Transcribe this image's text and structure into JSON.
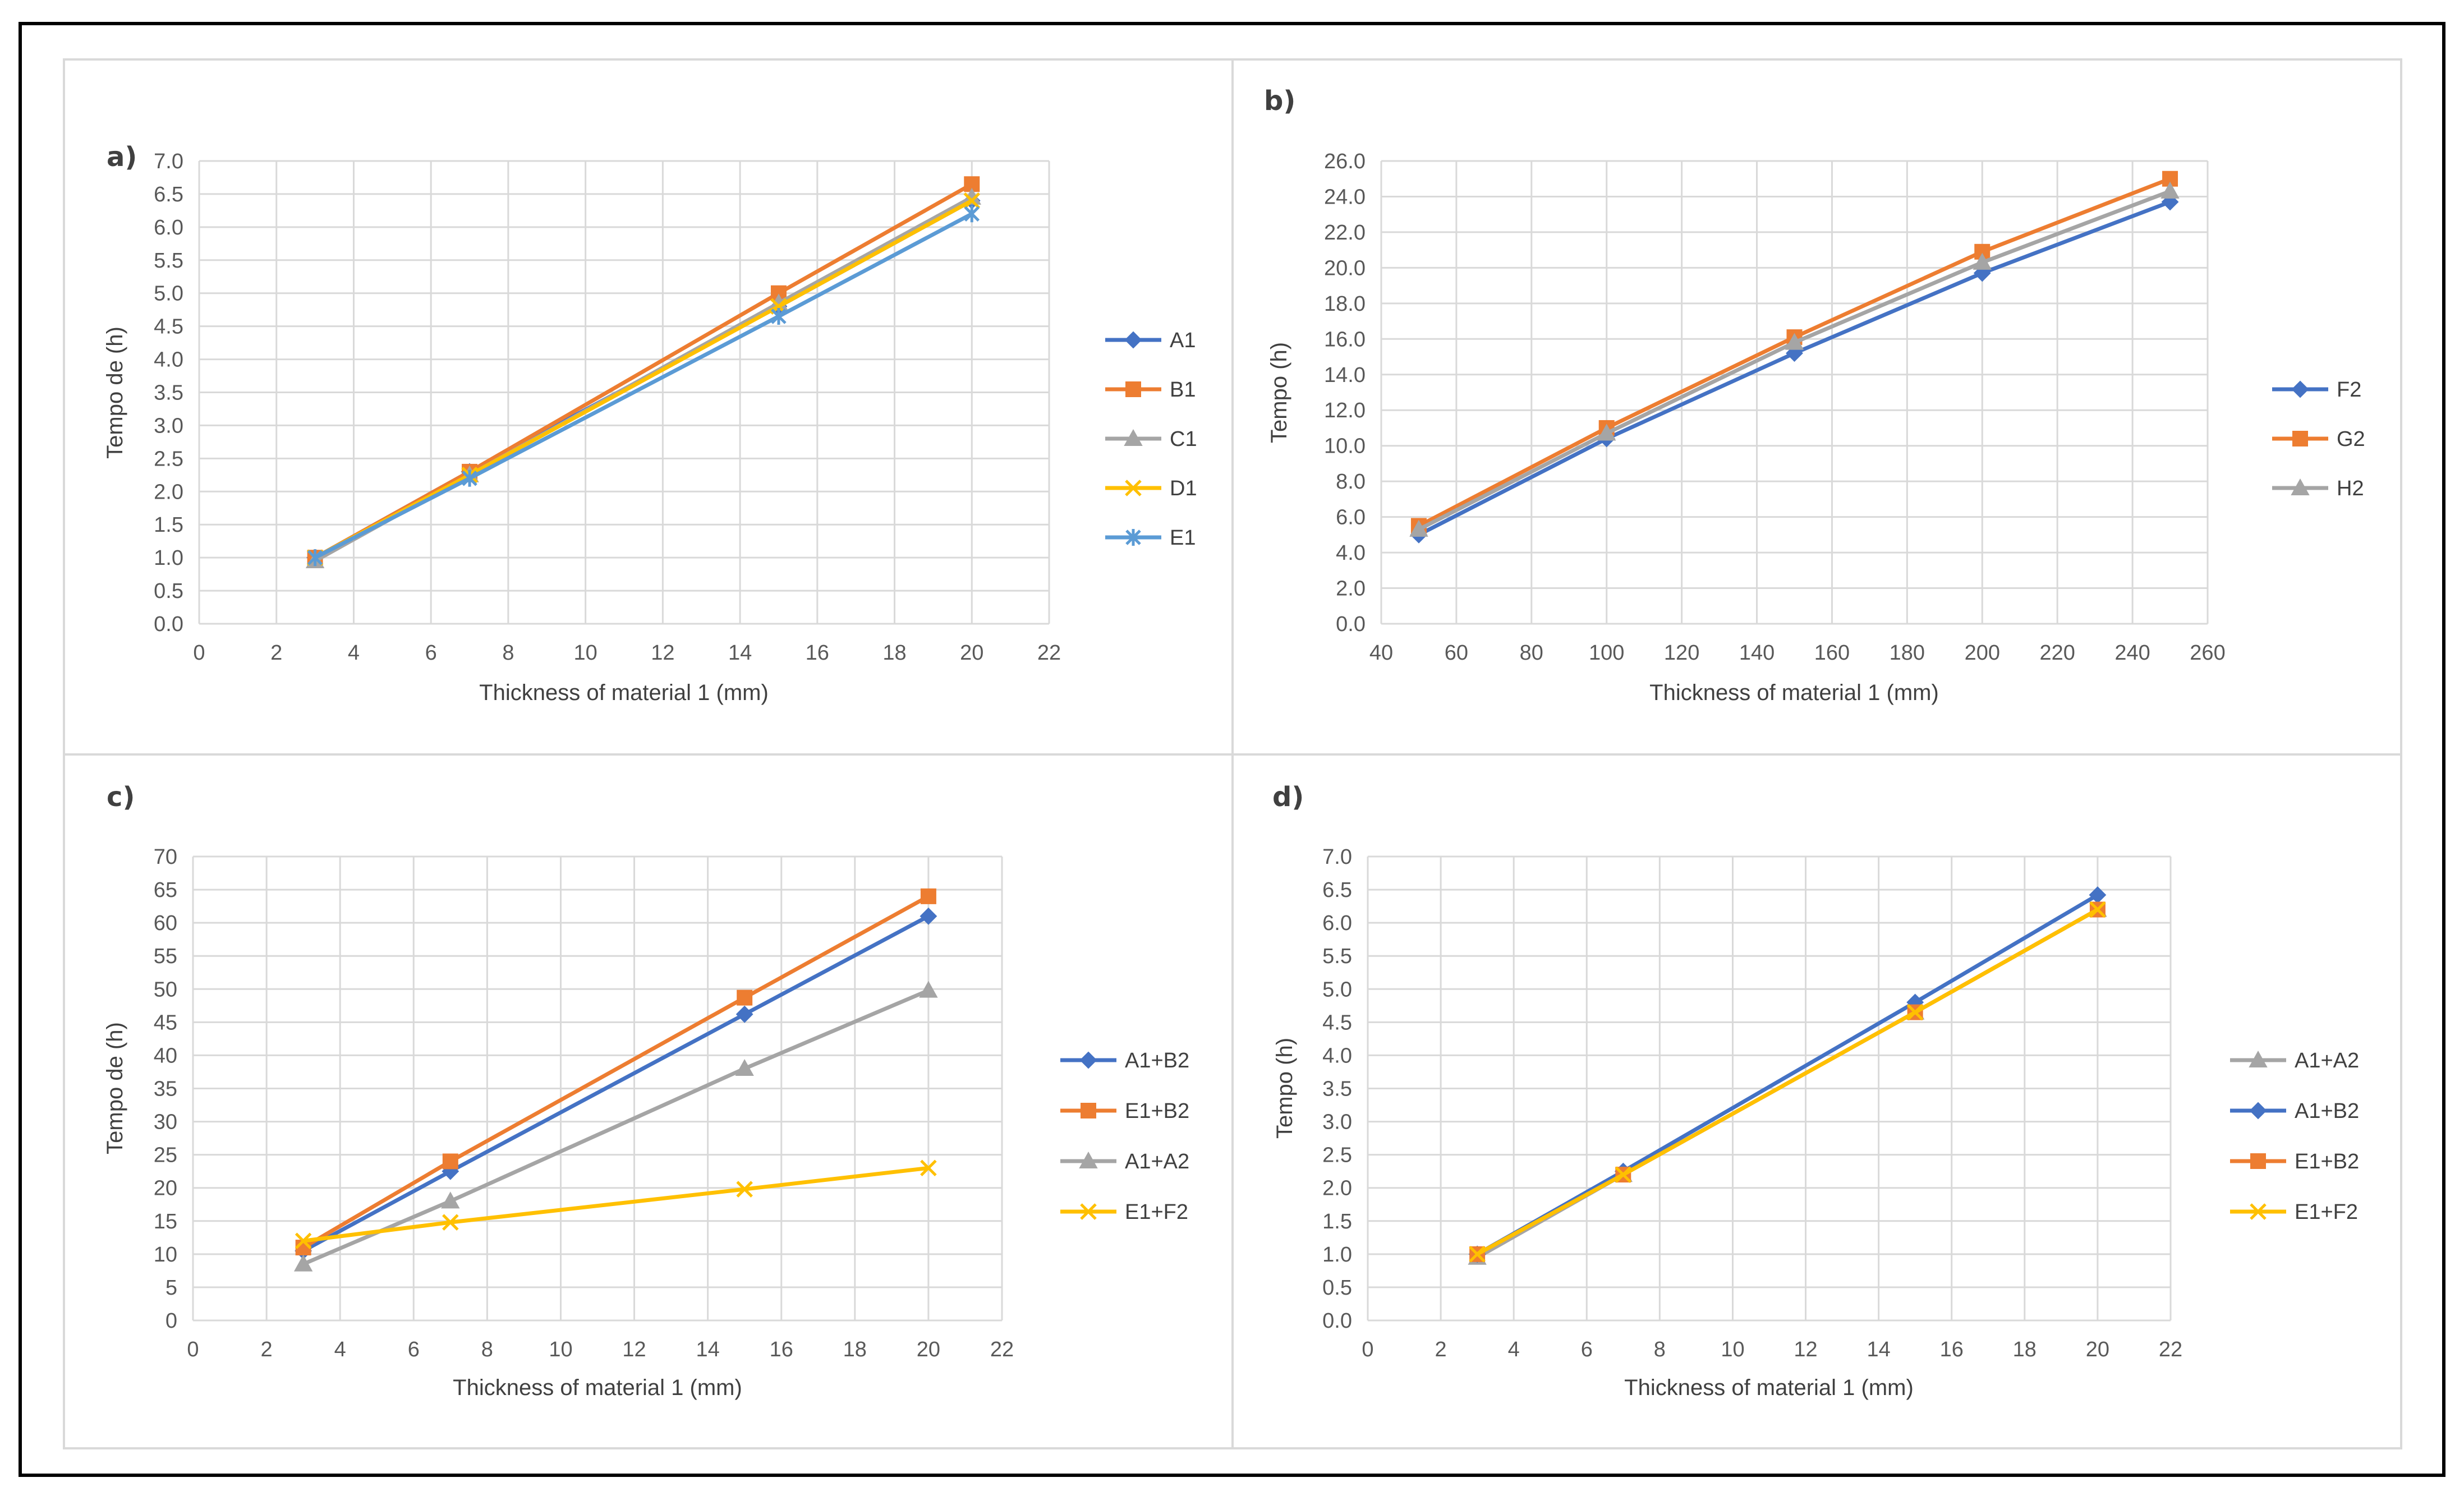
{
  "colors": {
    "blue": "#4472c4",
    "orange": "#ed7d31",
    "gray": "#a5a5a5",
    "yellow": "#ffc000",
    "lightblue": "#5b9bd5",
    "grid": "#d9d9d9",
    "frame": "#000000",
    "panel_border": "#d9d9d9"
  },
  "chart_data": [
    {
      "id": "a",
      "type": "line",
      "title": "a)",
      "xlabel": "Thickness of material 1 (mm)",
      "ylabel": "Tempo de (h)",
      "xlim": [
        0,
        22
      ],
      "xstep": 2,
      "ylim": [
        0,
        7
      ],
      "ystep": 0.5,
      "ydecimals": 1,
      "grid": true,
      "legend": "right",
      "series": [
        {
          "name": "A1",
          "marker": "diamond",
          "color": "#4472c4",
          "x": [
            3,
            7,
            15,
            20
          ],
          "y": [
            1.0,
            2.3,
            4.8,
            6.4
          ]
        },
        {
          "name": "B1",
          "marker": "square",
          "color": "#ed7d31",
          "x": [
            3,
            7,
            15,
            20
          ],
          "y": [
            1.0,
            2.3,
            5.0,
            6.65
          ]
        },
        {
          "name": "C1",
          "marker": "triangle",
          "color": "#a5a5a5",
          "x": [
            3,
            7,
            15,
            20
          ],
          "y": [
            0.95,
            2.25,
            4.85,
            6.45
          ]
        },
        {
          "name": "D1",
          "marker": "x",
          "color": "#ffc000",
          "x": [
            3,
            7,
            15,
            20
          ],
          "y": [
            1.0,
            2.25,
            4.8,
            6.4
          ]
        },
        {
          "name": "E1",
          "marker": "asterisk",
          "color": "#5b9bd5",
          "x": [
            3,
            7,
            15,
            20
          ],
          "y": [
            1.0,
            2.2,
            4.65,
            6.2
          ]
        }
      ]
    },
    {
      "id": "b",
      "type": "line",
      "title": "b)",
      "xlabel": "Thickness of material 1 (mm)",
      "ylabel": "Tempo (h)",
      "xlim": [
        40,
        260
      ],
      "xstep": 20,
      "ylim": [
        0,
        26
      ],
      "ystep": 2,
      "ydecimals": 1,
      "grid": true,
      "legend": "right",
      "series": [
        {
          "name": "F2",
          "marker": "diamond",
          "color": "#4472c4",
          "x": [
            50,
            100,
            150,
            200,
            250
          ],
          "y": [
            5.0,
            10.4,
            15.2,
            19.7,
            23.7
          ]
        },
        {
          "name": "G2",
          "marker": "square",
          "color": "#ed7d31",
          "x": [
            50,
            100,
            150,
            200,
            250
          ],
          "y": [
            5.5,
            11.0,
            16.1,
            20.9,
            25.0
          ]
        },
        {
          "name": "H2",
          "marker": "triangle",
          "color": "#a5a5a5",
          "x": [
            50,
            100,
            150,
            200,
            250
          ],
          "y": [
            5.3,
            10.7,
            15.8,
            20.3,
            24.3
          ]
        }
      ]
    },
    {
      "id": "c",
      "type": "line",
      "title": "c)",
      "xlabel": "Thickness of material 1 (mm)",
      "ylabel": "Tempo de (h)",
      "xlim": [
        0,
        22
      ],
      "xstep": 2,
      "ylim": [
        0,
        70
      ],
      "ystep": 5,
      "ydecimals": 0,
      "grid": true,
      "legend": "right",
      "series": [
        {
          "name": "A1+B2",
          "marker": "diamond",
          "color": "#4472c4",
          "x": [
            3,
            7,
            15,
            20
          ],
          "y": [
            10.5,
            22.5,
            46.2,
            61.0
          ]
        },
        {
          "name": "E1+B2",
          "marker": "square",
          "color": "#ed7d31",
          "x": [
            3,
            7,
            15,
            20
          ],
          "y": [
            11.0,
            24.0,
            48.7,
            64.0
          ]
        },
        {
          "name": "A1+A2",
          "marker": "triangle",
          "color": "#a5a5a5",
          "x": [
            3,
            7,
            15,
            20
          ],
          "y": [
            8.5,
            18.0,
            38.0,
            49.8
          ]
        },
        {
          "name": "E1+F2",
          "marker": "x",
          "color": "#ffc000",
          "x": [
            3,
            7,
            15,
            20
          ],
          "y": [
            12.0,
            14.8,
            19.8,
            23.0
          ]
        }
      ]
    },
    {
      "id": "d",
      "type": "line",
      "title": "d)",
      "xlabel": "Thickness of material 1 (mm)",
      "ylabel": "Tempo (h)",
      "xlim": [
        0,
        22
      ],
      "xstep": 2,
      "ylim": [
        0,
        7
      ],
      "ystep": 0.5,
      "ydecimals": 1,
      "grid": true,
      "legend": "right",
      "series": [
        {
          "name": "A1+A2",
          "marker": "triangle",
          "color": "#a5a5a5",
          "x": [
            3,
            7,
            15,
            20
          ],
          "y": [
            0.95,
            2.2,
            4.65,
            6.2
          ]
        },
        {
          "name": "A1+B2",
          "marker": "diamond",
          "color": "#4472c4",
          "x": [
            3,
            7,
            15,
            20
          ],
          "y": [
            1.0,
            2.25,
            4.8,
            6.42
          ]
        },
        {
          "name": "E1+B2",
          "marker": "square",
          "color": "#ed7d31",
          "x": [
            3,
            7,
            15,
            20
          ],
          "y": [
            1.0,
            2.2,
            4.65,
            6.2
          ]
        },
        {
          "name": "E1+F2",
          "marker": "x",
          "color": "#ffc000",
          "x": [
            3,
            7,
            15,
            20
          ],
          "y": [
            1.0,
            2.2,
            4.65,
            6.2
          ]
        }
      ]
    }
  ]
}
